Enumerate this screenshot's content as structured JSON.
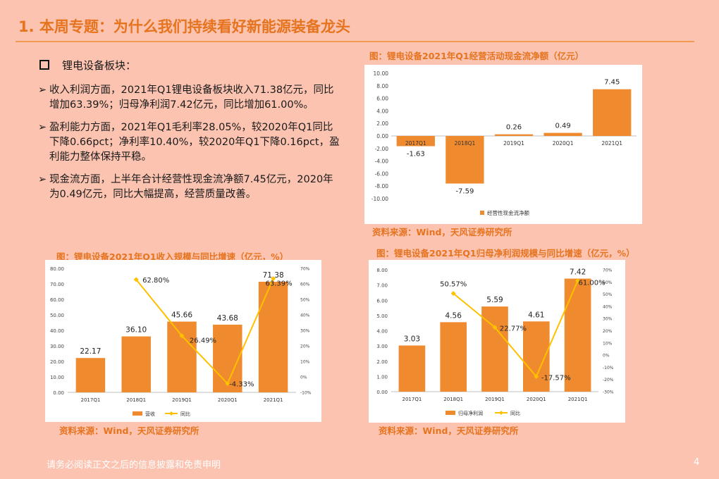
{
  "page_title": "1. 本周专题：为什么我们持续看好新能源装备龙头",
  "section_heading": "锂电设备板块：",
  "bullets": [
    "收入利润方面，2021年Q1锂电设备板块收入71.38亿元，同比增加63.39%；归母净利润7.42亿元，同比增加61.00%。",
    "盈利能力方面，2021年Q1毛利率28.05%，较2020年Q1同比下降0.66pct；净利率10.40%，较2020年Q1下降0.16pct，盈利能力整体保持平稳。",
    "现金流方面，上半年合计经营性现金流净额7.45亿元，2020年为0.49亿元，同比大幅提高，经营质量改善。"
  ],
  "bullet_marker": "➢",
  "footer_text": "请务必阅读正文之后的信息披露和免责申明",
  "page_number": "4",
  "colors": {
    "accent": "#e6741f",
    "bar": "#f08a2e",
    "line": "#ffc000",
    "background": "#fbc3b0"
  },
  "charts": {
    "cashflow": {
      "caption": "图：锂电设备2021年Q1经营活动现金流净额（亿元）",
      "source": "资料来源：Wind，天风证券研究所"
    },
    "revenue": {
      "caption": "图：锂电设备2021年Q1收入规模与同比增速（亿元，%）",
      "source": "资料来源：Wind，天风证券研究所"
    },
    "profit": {
      "caption": "图：锂电设备2021年Q1归母净利润规模与同比增速（亿元，%）",
      "source": "资料来源：Wind，天风证券研究所"
    }
  },
  "chart_data": [
    {
      "id": "cashflow",
      "type": "bar",
      "categories": [
        "2017Q1",
        "2018Q1",
        "2019Q1",
        "2020Q1",
        "2021Q1"
      ],
      "series": [
        {
          "name": "经营性现金流净额",
          "values": [
            -1.63,
            -7.59,
            0.26,
            0.49,
            7.45
          ]
        }
      ],
      "data_labels": [
        "-1.63",
        "-7.59",
        "0.26",
        "0.49",
        "7.45"
      ],
      "ylim": [
        -10,
        10
      ],
      "y_ticks": [
        "10.00",
        "8.00",
        "6.00",
        "4.00",
        "2.00",
        "0.00",
        "-2.00",
        "-4.00",
        "-6.00",
        "-8.00",
        "-10.00"
      ],
      "legend": "bottom"
    },
    {
      "id": "revenue",
      "type": "bar",
      "categories": [
        "2017Q1",
        "2018Q1",
        "2019Q1",
        "2020Q1",
        "2021Q1"
      ],
      "series": [
        {
          "name": "营收",
          "type": "bar",
          "values": [
            22.17,
            36.1,
            45.66,
            43.68,
            71.38
          ]
        },
        {
          "name": "同比",
          "type": "line",
          "axis": "right",
          "values": [
            null,
            62.8,
            26.49,
            -4.33,
            63.39
          ]
        }
      ],
      "bar_labels": [
        "22.17",
        "36.10",
        "45.66",
        "43.68",
        "71.38"
      ],
      "line_labels": [
        "",
        "62.80%",
        "26.49%",
        "-4.33%",
        "63.39%"
      ],
      "ylim": [
        0,
        80
      ],
      "y_ticks": [
        "80.00",
        "70.00",
        "60.00",
        "50.00",
        "40.00",
        "30.00",
        "20.00",
        "10.00",
        "0.00"
      ],
      "y2lim": [
        -10,
        70
      ],
      "y2_ticks": [
        "70%",
        "60%",
        "50%",
        "40%",
        "30%",
        "20%",
        "10%",
        "0%",
        "-10%"
      ],
      "legend": "bottom"
    },
    {
      "id": "profit",
      "type": "bar",
      "categories": [
        "2017Q1",
        "2018Q1",
        "2019Q1",
        "2020Q1",
        "2021Q1"
      ],
      "series": [
        {
          "name": "归母净利润",
          "type": "bar",
          "values": [
            3.03,
            4.56,
            5.59,
            4.61,
            7.42
          ]
        },
        {
          "name": "同比",
          "type": "line",
          "axis": "right",
          "values": [
            null,
            50.57,
            22.77,
            -17.57,
            61.0
          ]
        }
      ],
      "bar_labels": [
        "3.03",
        "4.56",
        "5.59",
        "4.61",
        "7.42"
      ],
      "line_labels": [
        "",
        "50.57%",
        "22.77%",
        "-17.57%",
        "61.00%"
      ],
      "ylim": [
        0,
        8
      ],
      "y_ticks": [
        "8.00",
        "7.00",
        "6.00",
        "5.00",
        "4.00",
        "3.00",
        "2.00",
        "1.00",
        "0.00"
      ],
      "y2lim": [
        -30,
        70
      ],
      "y2_ticks": [
        "70%",
        "60%",
        "50%",
        "40%",
        "30%",
        "20%",
        "10%",
        "0%",
        "-10%",
        "-20%",
        "-30%"
      ],
      "legend": "bottom"
    }
  ]
}
